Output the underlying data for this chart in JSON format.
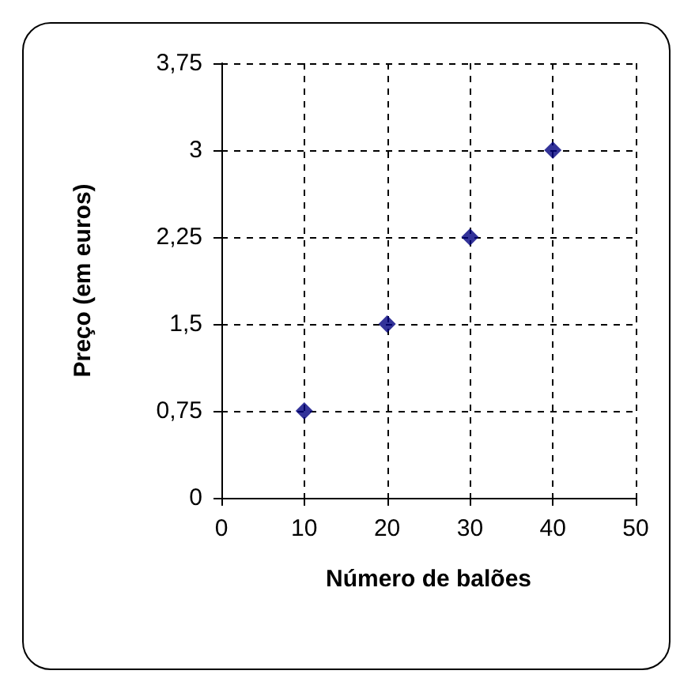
{
  "chart_data": {
    "type": "scatter",
    "xlabel": "Número de balões",
    "ylabel": "Preço (em euros)",
    "x": [
      10,
      20,
      30,
      40
    ],
    "series": [
      {
        "color": "#000080",
        "values": [
          0.75,
          1.5,
          2.25,
          3
        ]
      }
    ],
    "xlim": [
      0,
      50
    ],
    "xticks": [
      0,
      10,
      20,
      30,
      40,
      50
    ],
    "ylim": [
      0,
      3.75
    ],
    "yticks": [
      0,
      {
        "value": 0.75,
        "label": "0,75"
      },
      {
        "value": 1.5,
        "label": "1,5"
      },
      {
        "value": 2.25,
        "label": "2,25"
      },
      3,
      {
        "value": 3.75,
        "label": "3,75"
      }
    ],
    "grid": true,
    "marker": "diamond"
  }
}
